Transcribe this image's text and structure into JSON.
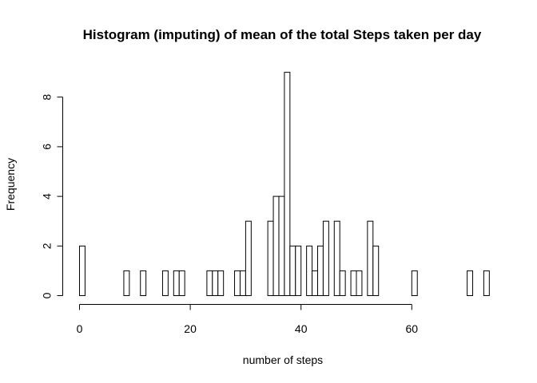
{
  "chart_data": {
    "type": "bar",
    "title": "Histogram (imputing) of mean of the total Steps taken per day",
    "xlabel": "number of steps",
    "ylabel": "Frequency",
    "xlim": [
      0,
      74
    ],
    "ylim": [
      0,
      9
    ],
    "bin_width": 1,
    "x_ticks": [
      0,
      20,
      40,
      60
    ],
    "y_ticks": [
      0,
      2,
      4,
      6,
      8
    ],
    "grid": false,
    "bins": [
      {
        "start": 0,
        "count": 2
      },
      {
        "start": 8,
        "count": 1
      },
      {
        "start": 11,
        "count": 1
      },
      {
        "start": 15,
        "count": 1
      },
      {
        "start": 17,
        "count": 1
      },
      {
        "start": 18,
        "count": 1
      },
      {
        "start": 23,
        "count": 1
      },
      {
        "start": 24,
        "count": 1
      },
      {
        "start": 25,
        "count": 1
      },
      {
        "start": 28,
        "count": 1
      },
      {
        "start": 29,
        "count": 1
      },
      {
        "start": 30,
        "count": 3
      },
      {
        "start": 34,
        "count": 3
      },
      {
        "start": 35,
        "count": 4
      },
      {
        "start": 36,
        "count": 4
      },
      {
        "start": 37,
        "count": 9
      },
      {
        "start": 38,
        "count": 2
      },
      {
        "start": 39,
        "count": 2
      },
      {
        "start": 41,
        "count": 2
      },
      {
        "start": 42,
        "count": 1
      },
      {
        "start": 43,
        "count": 2
      },
      {
        "start": 44,
        "count": 3
      },
      {
        "start": 46,
        "count": 3
      },
      {
        "start": 47,
        "count": 1
      },
      {
        "start": 49,
        "count": 1
      },
      {
        "start": 50,
        "count": 1
      },
      {
        "start": 52,
        "count": 3
      },
      {
        "start": 53,
        "count": 2
      },
      {
        "start": 60,
        "count": 1
      },
      {
        "start": 70,
        "count": 1
      },
      {
        "start": 73,
        "count": 1
      }
    ]
  }
}
